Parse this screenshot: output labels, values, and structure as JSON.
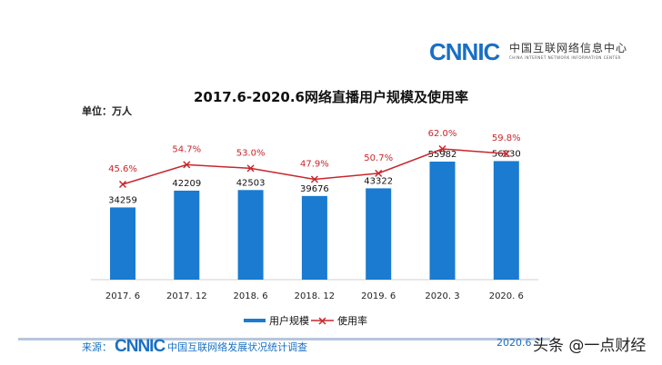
{
  "header": {
    "logo": "CNNIC",
    "logo_cn": "中国互联网络信息中心",
    "logo_en": "CHINA INTERNET NETWORK INFORMATION CENTER"
  },
  "chart_data": {
    "type": "bar",
    "title": "2017.6-2020.6网络直播用户规模及使用率",
    "unit_label": "单位：万人",
    "categories": [
      "2017. 6",
      "2017. 12",
      "2018. 6",
      "2018. 12",
      "2019. 6",
      "2020. 3",
      "2020. 6"
    ],
    "series": [
      {
        "name": "用户规模",
        "type": "bar",
        "color": "#1a7bd1",
        "values": [
          34259,
          42209,
          42503,
          39676,
          43322,
          55982,
          56230
        ],
        "labels": [
          "34259",
          "42209",
          "42503",
          "39676",
          "43322",
          "55982",
          "56230"
        ]
      },
      {
        "name": "使用率",
        "type": "line",
        "color": "#c8262c",
        "values": [
          45.6,
          54.7,
          53.0,
          47.9,
          50.7,
          62.0,
          59.8
        ],
        "labels": [
          "45.6%",
          "54.7%",
          "53.0%",
          "47.9%",
          "50.7%",
          "62.0%",
          "59.8%"
        ]
      }
    ],
    "legend": "bottom"
  },
  "footer": {
    "source_label": "来源：",
    "source_logo": "CNNIC",
    "source_text": "中国互联网络发展状况统计调查",
    "date": "2020.6",
    "watermark": "头条 @一点财经"
  }
}
